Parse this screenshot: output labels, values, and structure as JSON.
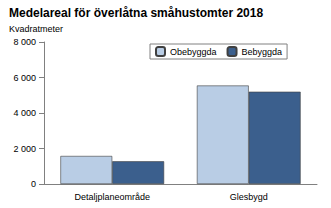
{
  "chart_data": {
    "type": "bar",
    "title": "Medelareal för överlåtna småhustomter 2018",
    "y_label": "Kvadratmeter",
    "categories": [
      "Detaljplaneområde",
      "Glesbygd"
    ],
    "series": [
      {
        "name": "Obebyggda",
        "color": "#b9cde5",
        "values": [
          1580,
          5550
        ]
      },
      {
        "name": "Bebyggda",
        "color": "#3b5f8d",
        "values": [
          1280,
          5200
        ]
      }
    ],
    "ylim": [
      0,
      8000
    ],
    "yticks": [
      0,
      {
        "value": 2000,
        "label": "2 000"
      },
      {
        "value": 4000,
        "label": "4 000"
      },
      {
        "value": 6000,
        "label": "6 000"
      },
      {
        "value": 8000,
        "label": "8 000"
      }
    ],
    "grid": false,
    "legend": "top"
  }
}
